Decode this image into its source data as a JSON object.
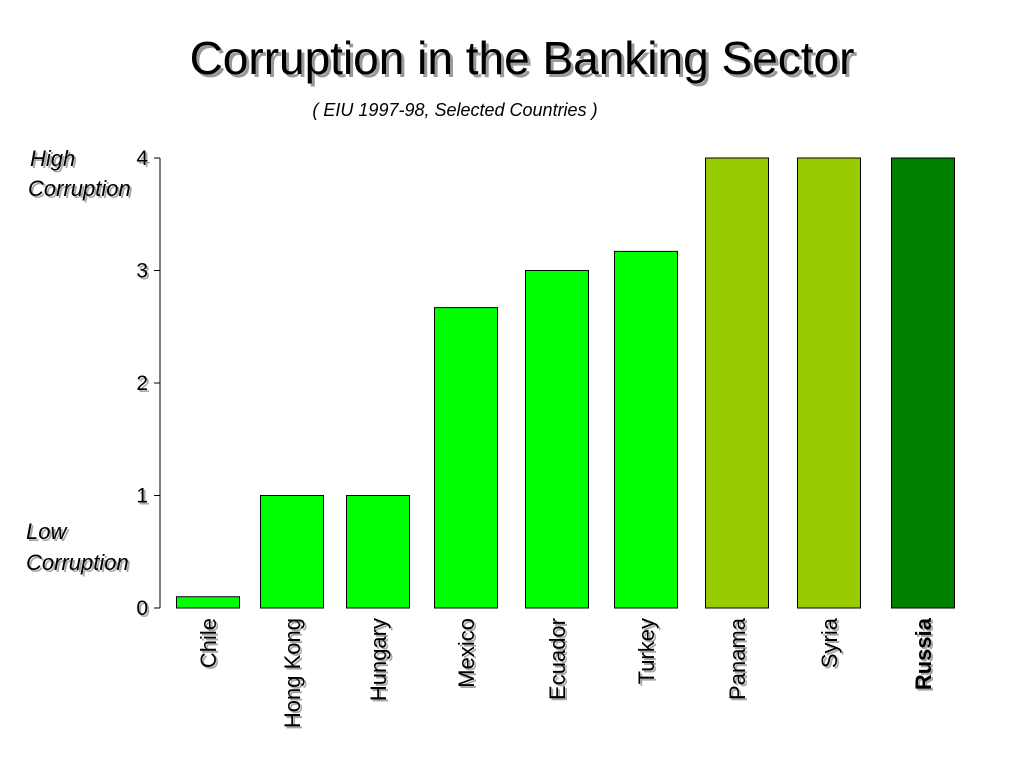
{
  "chart_data": {
    "type": "bar",
    "title": "Corruption in the Banking Sector",
    "subtitle": "( EIU 1997-98, Selected Countries )",
    "xlabel": "",
    "ylabel": "",
    "ylim": [
      0,
      4
    ],
    "yticks": [
      "0",
      "1",
      "2",
      "3",
      "4"
    ],
    "grid": false,
    "legend": "none",
    "categories": [
      "Chile",
      "Hong Kong",
      "Hungary",
      "Mexico",
      "Ecuador",
      "Turkey",
      "Panama",
      "Syria",
      "Russia"
    ],
    "values": [
      0.1,
      1,
      1,
      2.67,
      3,
      3.17,
      4,
      4,
      4
    ],
    "bar_colors": [
      "#00ff00",
      "#00ff00",
      "#00ff00",
      "#00ff00",
      "#00ff00",
      "#00ff00",
      "#99cc00",
      "#99cc00",
      "#008000"
    ],
    "bold_categories": [
      "Russia"
    ],
    "annotations": {
      "high_line1": "High",
      "high_line2": "Corruption",
      "low_line1": "Low",
      "low_line2": "Corruption"
    }
  }
}
